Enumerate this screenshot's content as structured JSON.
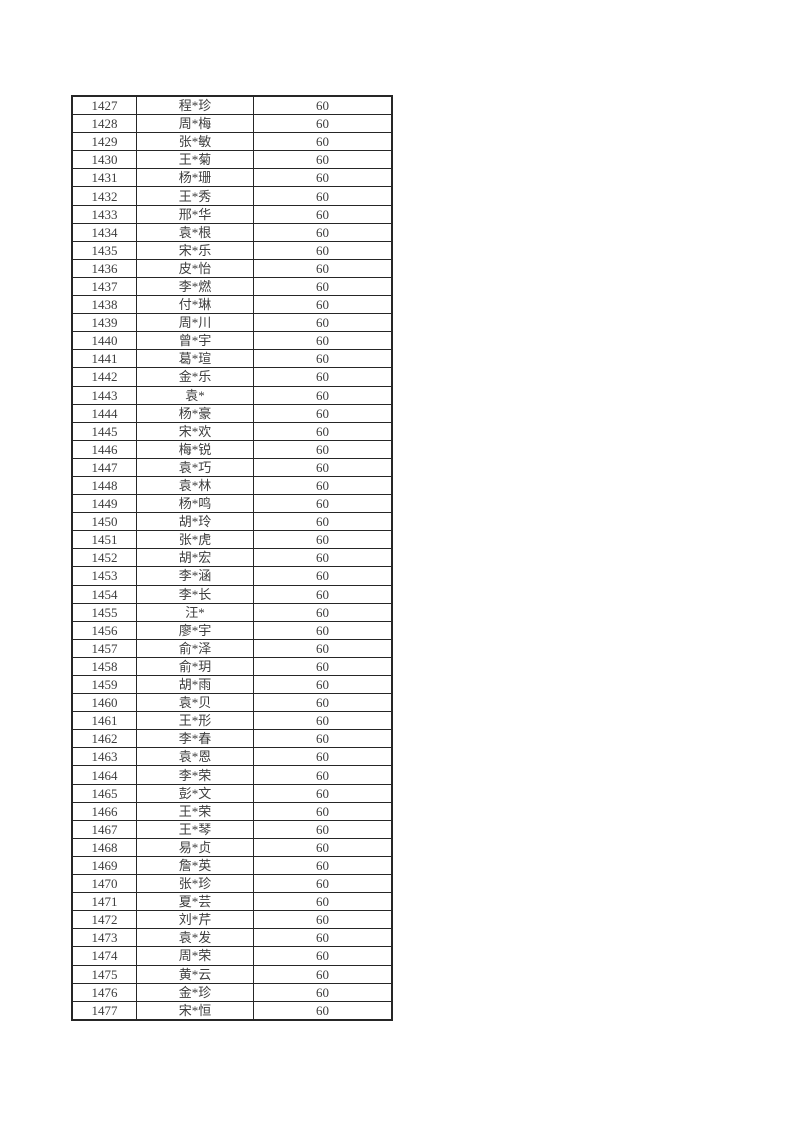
{
  "page": {
    "background": "#ffffff"
  },
  "table": {
    "border_color": "#262626",
    "text_color": "#3d3d3d",
    "score_value_all_rows": "60",
    "rows": [
      [
        "1427",
        "程*珍",
        "60"
      ],
      [
        "1428",
        "周*梅",
        "60"
      ],
      [
        "1429",
        "张*敏",
        "60"
      ],
      [
        "1430",
        "王*菊",
        "60"
      ],
      [
        "1431",
        "杨*珊",
        "60"
      ],
      [
        "1432",
        "王*秀",
        "60"
      ],
      [
        "1433",
        "邢*华",
        "60"
      ],
      [
        "1434",
        "袁*根",
        "60"
      ],
      [
        "1435",
        "宋*乐",
        "60"
      ],
      [
        "1436",
        "皮*怡",
        "60"
      ],
      [
        "1437",
        "李*燃",
        "60"
      ],
      [
        "1438",
        "付*琳",
        "60"
      ],
      [
        "1439",
        "周*川",
        "60"
      ],
      [
        "1440",
        "曾*宇",
        "60"
      ],
      [
        "1441",
        "葛*瑄",
        "60"
      ],
      [
        "1442",
        "金*乐",
        "60"
      ],
      [
        "1443",
        "袁*",
        "60"
      ],
      [
        "1444",
        "杨*豪",
        "60"
      ],
      [
        "1445",
        "宋*欢",
        "60"
      ],
      [
        "1446",
        "梅*锐",
        "60"
      ],
      [
        "1447",
        "袁*巧",
        "60"
      ],
      [
        "1448",
        "袁*林",
        "60"
      ],
      [
        "1449",
        "杨*鸣",
        "60"
      ],
      [
        "1450",
        "胡*玲",
        "60"
      ],
      [
        "1451",
        "张*虎",
        "60"
      ],
      [
        "1452",
        "胡*宏",
        "60"
      ],
      [
        "1453",
        "李*涵",
        "60"
      ],
      [
        "1454",
        "李*长",
        "60"
      ],
      [
        "1455",
        "汪*",
        "60"
      ],
      [
        "1456",
        "廖*宇",
        "60"
      ],
      [
        "1457",
        "俞*泽",
        "60"
      ],
      [
        "1458",
        "俞*玥",
        "60"
      ],
      [
        "1459",
        "胡*雨",
        "60"
      ],
      [
        "1460",
        "袁*贝",
        "60"
      ],
      [
        "1461",
        "王*形",
        "60"
      ],
      [
        "1462",
        "李*春",
        "60"
      ],
      [
        "1463",
        "袁*恩",
        "60"
      ],
      [
        "1464",
        "李*荣",
        "60"
      ],
      [
        "1465",
        "彭*文",
        "60"
      ],
      [
        "1466",
        "王*荣",
        "60"
      ],
      [
        "1467",
        "王*琴",
        "60"
      ],
      [
        "1468",
        "易*贞",
        "60"
      ],
      [
        "1469",
        "詹*英",
        "60"
      ],
      [
        "1470",
        "张*珍",
        "60"
      ],
      [
        "1471",
        "夏*芸",
        "60"
      ],
      [
        "1472",
        "刘*芹",
        "60"
      ],
      [
        "1473",
        "袁*发",
        "60"
      ],
      [
        "1474",
        "周*荣",
        "60"
      ],
      [
        "1475",
        "黄*云",
        "60"
      ],
      [
        "1476",
        "金*珍",
        "60"
      ],
      [
        "1477",
        "宋*恒",
        "60"
      ]
    ]
  }
}
